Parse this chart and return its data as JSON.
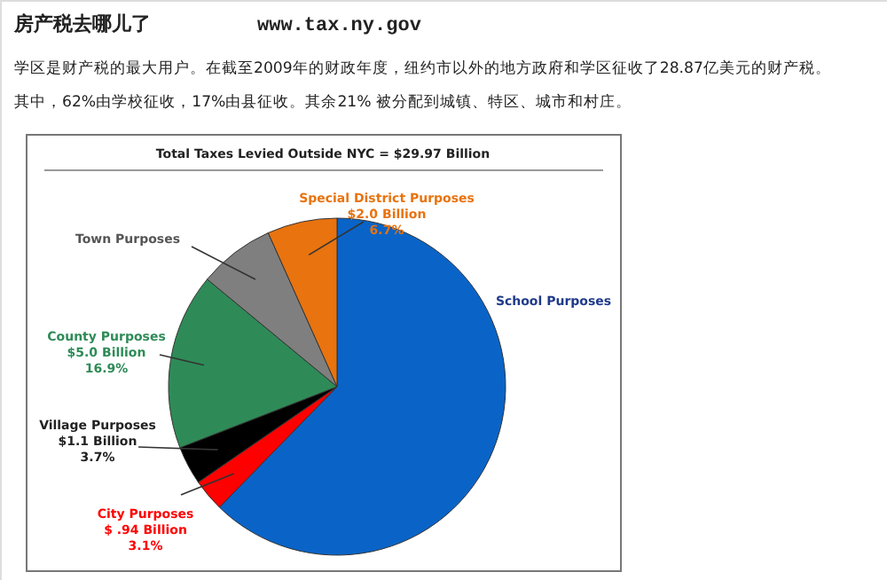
{
  "chart_data": {
    "type": "pie",
    "title": "房产税去哪儿了",
    "subtitle": "www.tax.ny.gov",
    "annotations": [
      "学区是财产税的最大用户。在截至2009年的财政年度，纽约市以外的地方政府和学区征收了28.87亿美元的财产税。",
      "其中，62%由学校征收，17%由县征收。其余21% 被分配到城镇、特区、城市和村庄。",
      "Total Taxes Levied Outside NYC = $29.97 Billion"
    ],
    "categories": [
      "School Purposes",
      "City Purposes",
      "Village Purposes",
      "County Purposes",
      "Town Purposes",
      "Special District Purposes"
    ],
    "values": [
      62.3,
      3.1,
      3.7,
      16.9,
      7.3,
      6.7
    ],
    "value_labels": [
      null,
      "$ .94 Billion\n3.1%",
      "$1.1 Billion\n3.7%",
      "$5.0 Billion\n16.9%",
      null,
      "$2.0 Billion\n6.7%"
    ],
    "colors": [
      "#0a64c8",
      "#ff0000",
      "#000000",
      "#2e8b57",
      "#7f7f7f",
      "#e8730f"
    ]
  }
}
